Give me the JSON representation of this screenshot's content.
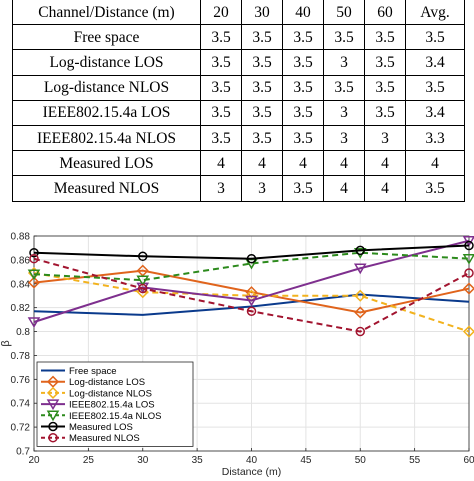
{
  "table": {
    "header": [
      "Channel/Distance (m)",
      "20",
      "30",
      "40",
      "50",
      "60",
      "Avg."
    ],
    "rows": [
      [
        "Free space",
        "3.5",
        "3.5",
        "3.5",
        "3.5",
        "3.5",
        "3.5"
      ],
      [
        "Log-distance LOS",
        "3.5",
        "3.5",
        "3.5",
        "3",
        "3.5",
        "3.4"
      ],
      [
        "Log-distance NLOS",
        "3.5",
        "3.5",
        "3.5",
        "3.5",
        "3.5",
        "3.5"
      ],
      [
        "IEEE802.15.4a LOS",
        "3.5",
        "3.5",
        "3.5",
        "3",
        "3.5",
        "3.4"
      ],
      [
        "IEEE802.15.4a NLOS",
        "3.5",
        "3.5",
        "3.5",
        "3",
        "3",
        "3.3"
      ],
      [
        "Measured LOS",
        "4",
        "4",
        "4",
        "4",
        "4",
        "4"
      ],
      [
        "Measured NLOS",
        "3",
        "3",
        "3.5",
        "4",
        "4",
        "3.5"
      ]
    ]
  },
  "chart_data": {
    "type": "line",
    "xlabel": "Distance (m)",
    "ylabel": "β",
    "xlim": [
      20,
      60
    ],
    "ylim": [
      0.7,
      0.88
    ],
    "xticks": [
      20,
      25,
      30,
      35,
      40,
      45,
      50,
      55,
      60
    ],
    "yticks": [
      0.7,
      0.72,
      0.74,
      0.76,
      0.78,
      0.8,
      0.82,
      0.84,
      0.86,
      0.88
    ],
    "grid": true,
    "legend_position": "bottom-left",
    "x": [
      20,
      30,
      40,
      50,
      60
    ],
    "series": [
      {
        "name": "Free space",
        "values": [
          0.817,
          0.814,
          0.821,
          0.831,
          0.825
        ],
        "color": "#0a3a8c",
        "dash": "solid",
        "marker": "none"
      },
      {
        "name": "Log-distance LOS",
        "values": [
          0.841,
          0.851,
          0.833,
          0.816,
          0.836
        ],
        "color": "#e0641c",
        "dash": "solid",
        "marker": "diamond"
      },
      {
        "name": "Log-distance NLOS",
        "values": [
          0.849,
          0.833,
          0.83,
          0.83,
          0.8
        ],
        "color": "#f2b21e",
        "dash": "dashed",
        "marker": "diamond"
      },
      {
        "name": "IEEE802.15.4a LOS",
        "values": [
          0.808,
          0.837,
          0.826,
          0.853,
          0.876
        ],
        "color": "#7e2f8e",
        "dash": "solid",
        "marker": "triangle-down"
      },
      {
        "name": "IEEE802.15.4a NLOS",
        "values": [
          0.848,
          0.843,
          0.857,
          0.866,
          0.861
        ],
        "color": "#2c8a1c",
        "dash": "dashed",
        "marker": "triangle-down"
      },
      {
        "name": "Measured LOS",
        "values": [
          0.866,
          0.863,
          0.861,
          0.868,
          0.872
        ],
        "color": "#000000",
        "dash": "solid",
        "marker": "circle"
      },
      {
        "name": "Measured NLOS",
        "values": [
          0.861,
          0.836,
          0.817,
          0.8,
          0.849
        ],
        "color": "#a2142f",
        "dash": "dashed",
        "marker": "circle"
      }
    ]
  }
}
